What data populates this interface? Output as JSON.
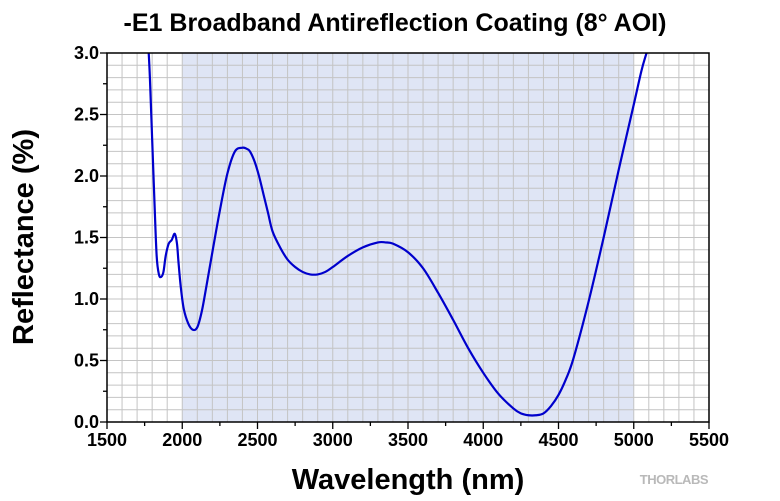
{
  "chart_data": {
    "type": "line",
    "title": "-E1 Broadband Antireflection Coating (8° AOI)",
    "xlabel": "Wavelength (nm)",
    "ylabel": "Reflectance (%)",
    "xlim": [
      1500,
      5500
    ],
    "ylim": [
      0,
      3.0
    ],
    "x_ticks": [
      "1500",
      "2000",
      "2500",
      "3000",
      "3500",
      "4000",
      "4500",
      "5000",
      "5500"
    ],
    "y_ticks": [
      "0.0",
      "0.5",
      "1.0",
      "1.5",
      "2.0",
      "2.5",
      "3.0"
    ],
    "grid": true,
    "shaded_band": {
      "x_start": 2000,
      "x_end": 5000,
      "color": "#dfe5f5"
    },
    "series_color": "#0000cc",
    "series": [
      {
        "x": [
          1775,
          1785,
          1800,
          1815,
          1830,
          1845,
          1860,
          1875,
          1890,
          1910,
          1930,
          1950,
          1965,
          1975,
          1990,
          2010,
          2040,
          2070,
          2100,
          2130,
          2160,
          2200,
          2250,
          2300,
          2350,
          2400,
          2430,
          2450,
          2480,
          2510,
          2540,
          2570,
          2600,
          2650,
          2700,
          2750,
          2800,
          2850,
          2900,
          2950,
          3000,
          3100,
          3200,
          3300,
          3350,
          3400,
          3500,
          3600,
          3700,
          3800,
          3900,
          4000,
          4100,
          4200,
          4250,
          4300,
          4350,
          4400,
          4450,
          4500,
          4550,
          4600,
          4700,
          4800,
          4900,
          5000,
          5050,
          5080,
          5100
        ],
        "values": [
          3.05,
          2.8,
          2.3,
          1.8,
          1.35,
          1.2,
          1.18,
          1.22,
          1.35,
          1.45,
          1.48,
          1.53,
          1.45,
          1.3,
          1.1,
          0.92,
          0.8,
          0.75,
          0.77,
          0.9,
          1.1,
          1.38,
          1.72,
          2.02,
          2.2,
          2.23,
          2.22,
          2.2,
          2.12,
          2.0,
          1.85,
          1.7,
          1.55,
          1.42,
          1.32,
          1.26,
          1.22,
          1.2,
          1.2,
          1.22,
          1.26,
          1.35,
          1.42,
          1.46,
          1.46,
          1.45,
          1.38,
          1.25,
          1.05,
          0.83,
          0.6,
          0.4,
          0.23,
          0.11,
          0.07,
          0.055,
          0.055,
          0.07,
          0.13,
          0.22,
          0.35,
          0.52,
          0.98,
          1.5,
          2.05,
          2.58,
          2.85,
          2.98,
          3.05
        ]
      }
    ]
  },
  "watermark": {
    "logo_text": "THORLABS",
    "logo_color": "#b9b9b9"
  }
}
